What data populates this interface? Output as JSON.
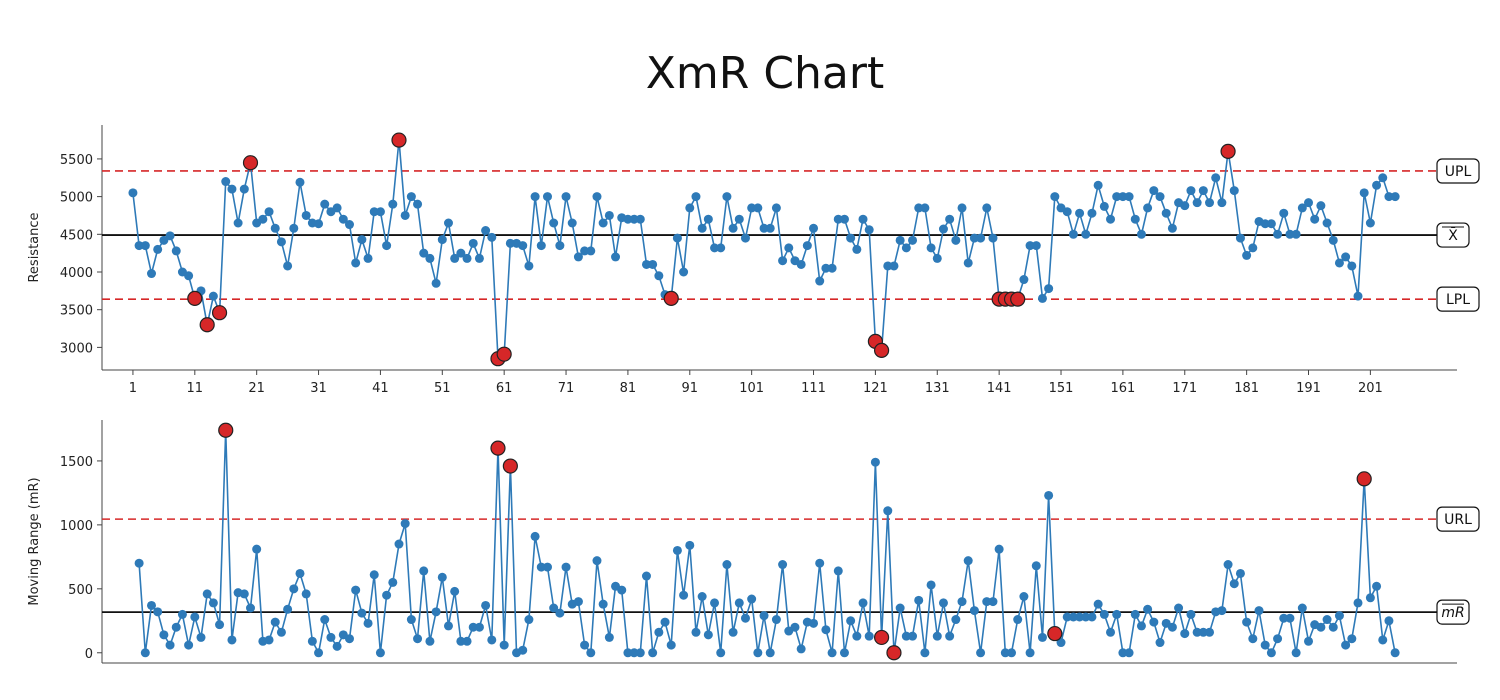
{
  "title": "XmR Chart",
  "chart_data": [
    {
      "type": "line",
      "name": "x-chart",
      "ylabel": "Resistance",
      "ylim": [
        2700,
        5950
      ],
      "xlim": [
        -4,
        215
      ],
      "yticks": [
        3000,
        3500,
        4000,
        4500,
        5000,
        5500
      ],
      "xticks": [
        1,
        11,
        21,
        31,
        41,
        51,
        61,
        71,
        81,
        91,
        101,
        111,
        121,
        131,
        141,
        151,
        161,
        171,
        181,
        191,
        201
      ],
      "grid": false,
      "color": "#2e7ab8",
      "limit_color": "#d62728",
      "limits": [
        {
          "label": "UPL",
          "value": 5340,
          "style": "dashed"
        },
        {
          "label": "X̄",
          "value": 4490,
          "style": "solid",
          "overline": true
        },
        {
          "label": "LPL",
          "value": 3640,
          "style": "dashed"
        }
      ],
      "x_start": 1,
      "values": [
        5050,
        4350,
        4350,
        3980,
        4300,
        4420,
        4480,
        4280,
        4000,
        3950,
        3650,
        3750,
        3300,
        3680,
        3460,
        5200,
        5100,
        4650,
        5100,
        5450,
        4650,
        4700,
        4800,
        4580,
        4400,
        4080,
        4580,
        5190,
        4750,
        4650,
        4640,
        4900,
        4800,
        4850,
        4700,
        4630,
        4120,
        4430,
        4180,
        4800,
        4800,
        4350,
        4900,
        5750,
        4750,
        5000,
        4900,
        4250,
        4180,
        3850,
        4430,
        4650,
        4180,
        4250,
        4180,
        4380,
        4180,
        4550,
        4460,
        2850,
        2910,
        4380,
        4380,
        4350,
        4080,
        5000,
        4350,
        5000,
        4650,
        4350,
        5000,
        4650,
        4200,
        4280,
        4280,
        5000,
        4650,
        4750,
        4200,
        4720,
        4700,
        4700,
        4700,
        4100,
        4100,
        3950,
        3700,
        3650,
        4450,
        4000,
        4850,
        5000,
        4580,
        4700,
        4320,
        4320,
        5000,
        4580,
        4700,
        4450,
        4850,
        4850,
        4580,
        4580,
        4850,
        4150,
        4320,
        4150,
        4100,
        4350,
        4580,
        3880,
        4050,
        4050,
        4700,
        4700,
        4450,
        4300,
        4700,
        4560,
        3080,
        2960,
        4080,
        4080,
        4420,
        4320,
        4420,
        4850,
        4850,
        4320,
        4180,
        4570,
        4700,
        4420,
        4850,
        4120,
        4450,
        4450,
        4850,
        4450,
        3640,
        3640,
        3640,
        3640,
        3900,
        4350,
        4350,
        3650,
        3780,
        5000,
        4850,
        4800,
        4500,
        4780,
        4500,
        4780,
        5150,
        4870,
        4700,
        5000,
        5000,
        5000,
        4700,
        4500,
        4850,
        5080,
        5000,
        4780,
        4580,
        4920,
        4880,
        5080,
        4920,
        5080,
        4920,
        5250,
        4920,
        5600,
        5080,
        4450,
        4220,
        4320,
        4670,
        4640,
        4640,
        4500,
        4780,
        4500,
        4500,
        4850,
        4920,
        4700,
        4880,
        4650,
        4420,
        4120,
        4200,
        4080,
        3680,
        5050,
        4650,
        5150,
        5250,
        5000,
        5000
      ],
      "highlighted": [
        11,
        13,
        15,
        20,
        44,
        60,
        61,
        88,
        121,
        122,
        141,
        142,
        143,
        144,
        178
      ]
    },
    {
      "type": "line",
      "name": "mr-chart",
      "ylabel": "Moving Range (mR)",
      "ylim": [
        -80,
        1820
      ],
      "xlim": [
        -4,
        215
      ],
      "yticks": [
        0,
        500,
        1000,
        1500
      ],
      "grid": false,
      "color": "#2e7ab8",
      "limit_color": "#d62728",
      "limits": [
        {
          "label": "URL",
          "value": 1045,
          "style": "dashed"
        },
        {
          "label": "mR",
          "value": 318,
          "style": "solid",
          "overline": true,
          "italic": true
        }
      ],
      "x_start": 2,
      "values": [
        700,
        0,
        370,
        320,
        140,
        60,
        200,
        300,
        60,
        280,
        120,
        460,
        390,
        220,
        1740,
        100,
        470,
        460,
        350,
        810,
        90,
        100,
        240,
        160,
        340,
        500,
        620,
        460,
        90,
        0,
        260,
        120,
        50,
        140,
        110,
        490,
        310,
        230,
        610,
        0,
        450,
        550,
        850,
        1010,
        260,
        110,
        640,
        90,
        320,
        590,
        210,
        480,
        90,
        90,
        200,
        200,
        370,
        100,
        1600,
        60,
        1460,
        0,
        20,
        260,
        910,
        670,
        670,
        350,
        310,
        670,
        380,
        400,
        60,
        0,
        720,
        380,
        120,
        520,
        490,
        0,
        0,
        0,
        600,
        0,
        160,
        240,
        60,
        800,
        450,
        840,
        160,
        440,
        140,
        390,
        0,
        690,
        160,
        390,
        270,
        420,
        0,
        290,
        0,
        260,
        690,
        170,
        200,
        30,
        240,
        230,
        700,
        180,
        0,
        640,
        0,
        250,
        130,
        390,
        130,
        1490,
        120,
        1110,
        0,
        350,
        130,
        130,
        410,
        0,
        530,
        130,
        390,
        130,
        260,
        400,
        720,
        330,
        0,
        400,
        400,
        810,
        0,
        0,
        260,
        440,
        0,
        680,
        120,
        1230,
        150,
        80,
        280,
        280,
        280,
        280,
        280,
        380,
        300,
        160,
        300,
        0,
        0,
        300,
        210,
        340,
        240,
        80,
        230,
        200,
        350,
        150,
        300,
        160,
        160,
        160,
        320,
        330,
        690,
        540,
        620,
        240,
        110,
        330,
        60,
        0,
        110,
        270,
        270,
        0,
        350,
        90,
        220,
        200,
        260,
        200,
        290,
        60,
        110,
        390,
        1360,
        430,
        520,
        100,
        250,
        0
      ],
      "highlighted": [
        16,
        60,
        62,
        122,
        124,
        150,
        200
      ]
    }
  ]
}
